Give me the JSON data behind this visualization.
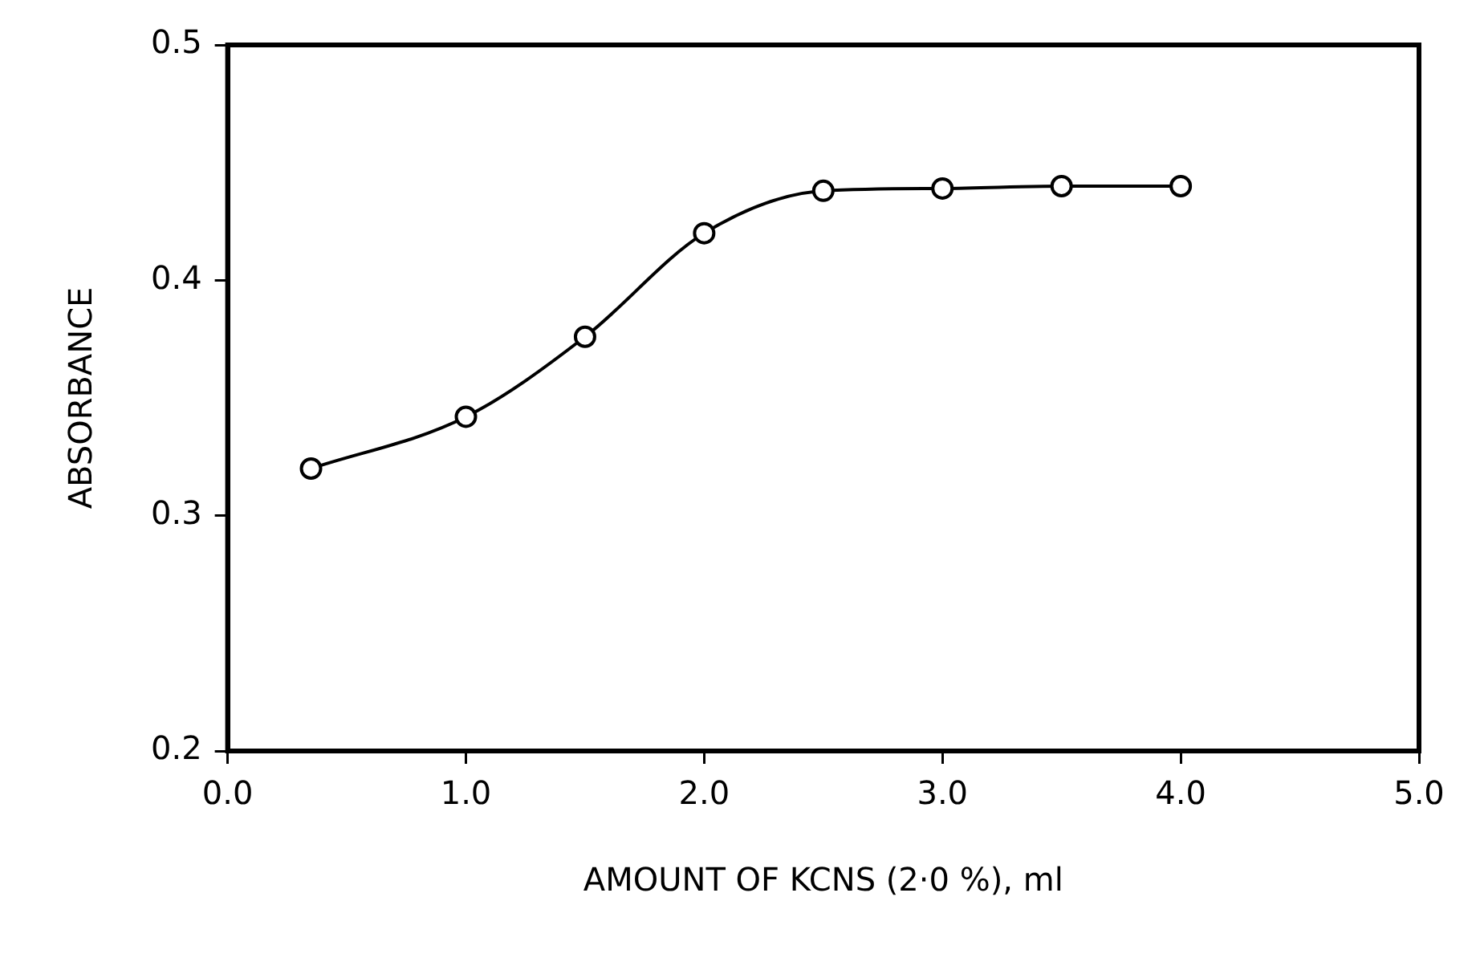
{
  "chart_data": {
    "type": "line",
    "xlabel": "AMOUNT OF KCNS (2·0 %), ml",
    "ylabel": "ABSORBANCE",
    "x": [
      0.35,
      1.0,
      1.5,
      2.0,
      2.5,
      3.0,
      3.5,
      4.0
    ],
    "values": [
      0.32,
      0.342,
      0.376,
      0.42,
      0.438,
      0.439,
      0.44,
      0.44
    ],
    "color": "#000000",
    "marker": "circle",
    "line_style": "solid",
    "grid": false,
    "legend": false,
    "xlim": [
      0,
      5
    ],
    "xticks": [
      {
        "value": 0,
        "label": "0.0"
      },
      {
        "value": 1,
        "label": "1.0"
      },
      {
        "value": 2,
        "label": "2.0"
      },
      {
        "value": 3,
        "label": "3.0"
      },
      {
        "value": 4,
        "label": "4.0"
      },
      {
        "value": 5,
        "label": "5.0"
      }
    ],
    "ylim": [
      0.2,
      0.5
    ],
    "yticks": [
      0.2,
      0.3,
      0.4,
      0.5
    ]
  }
}
